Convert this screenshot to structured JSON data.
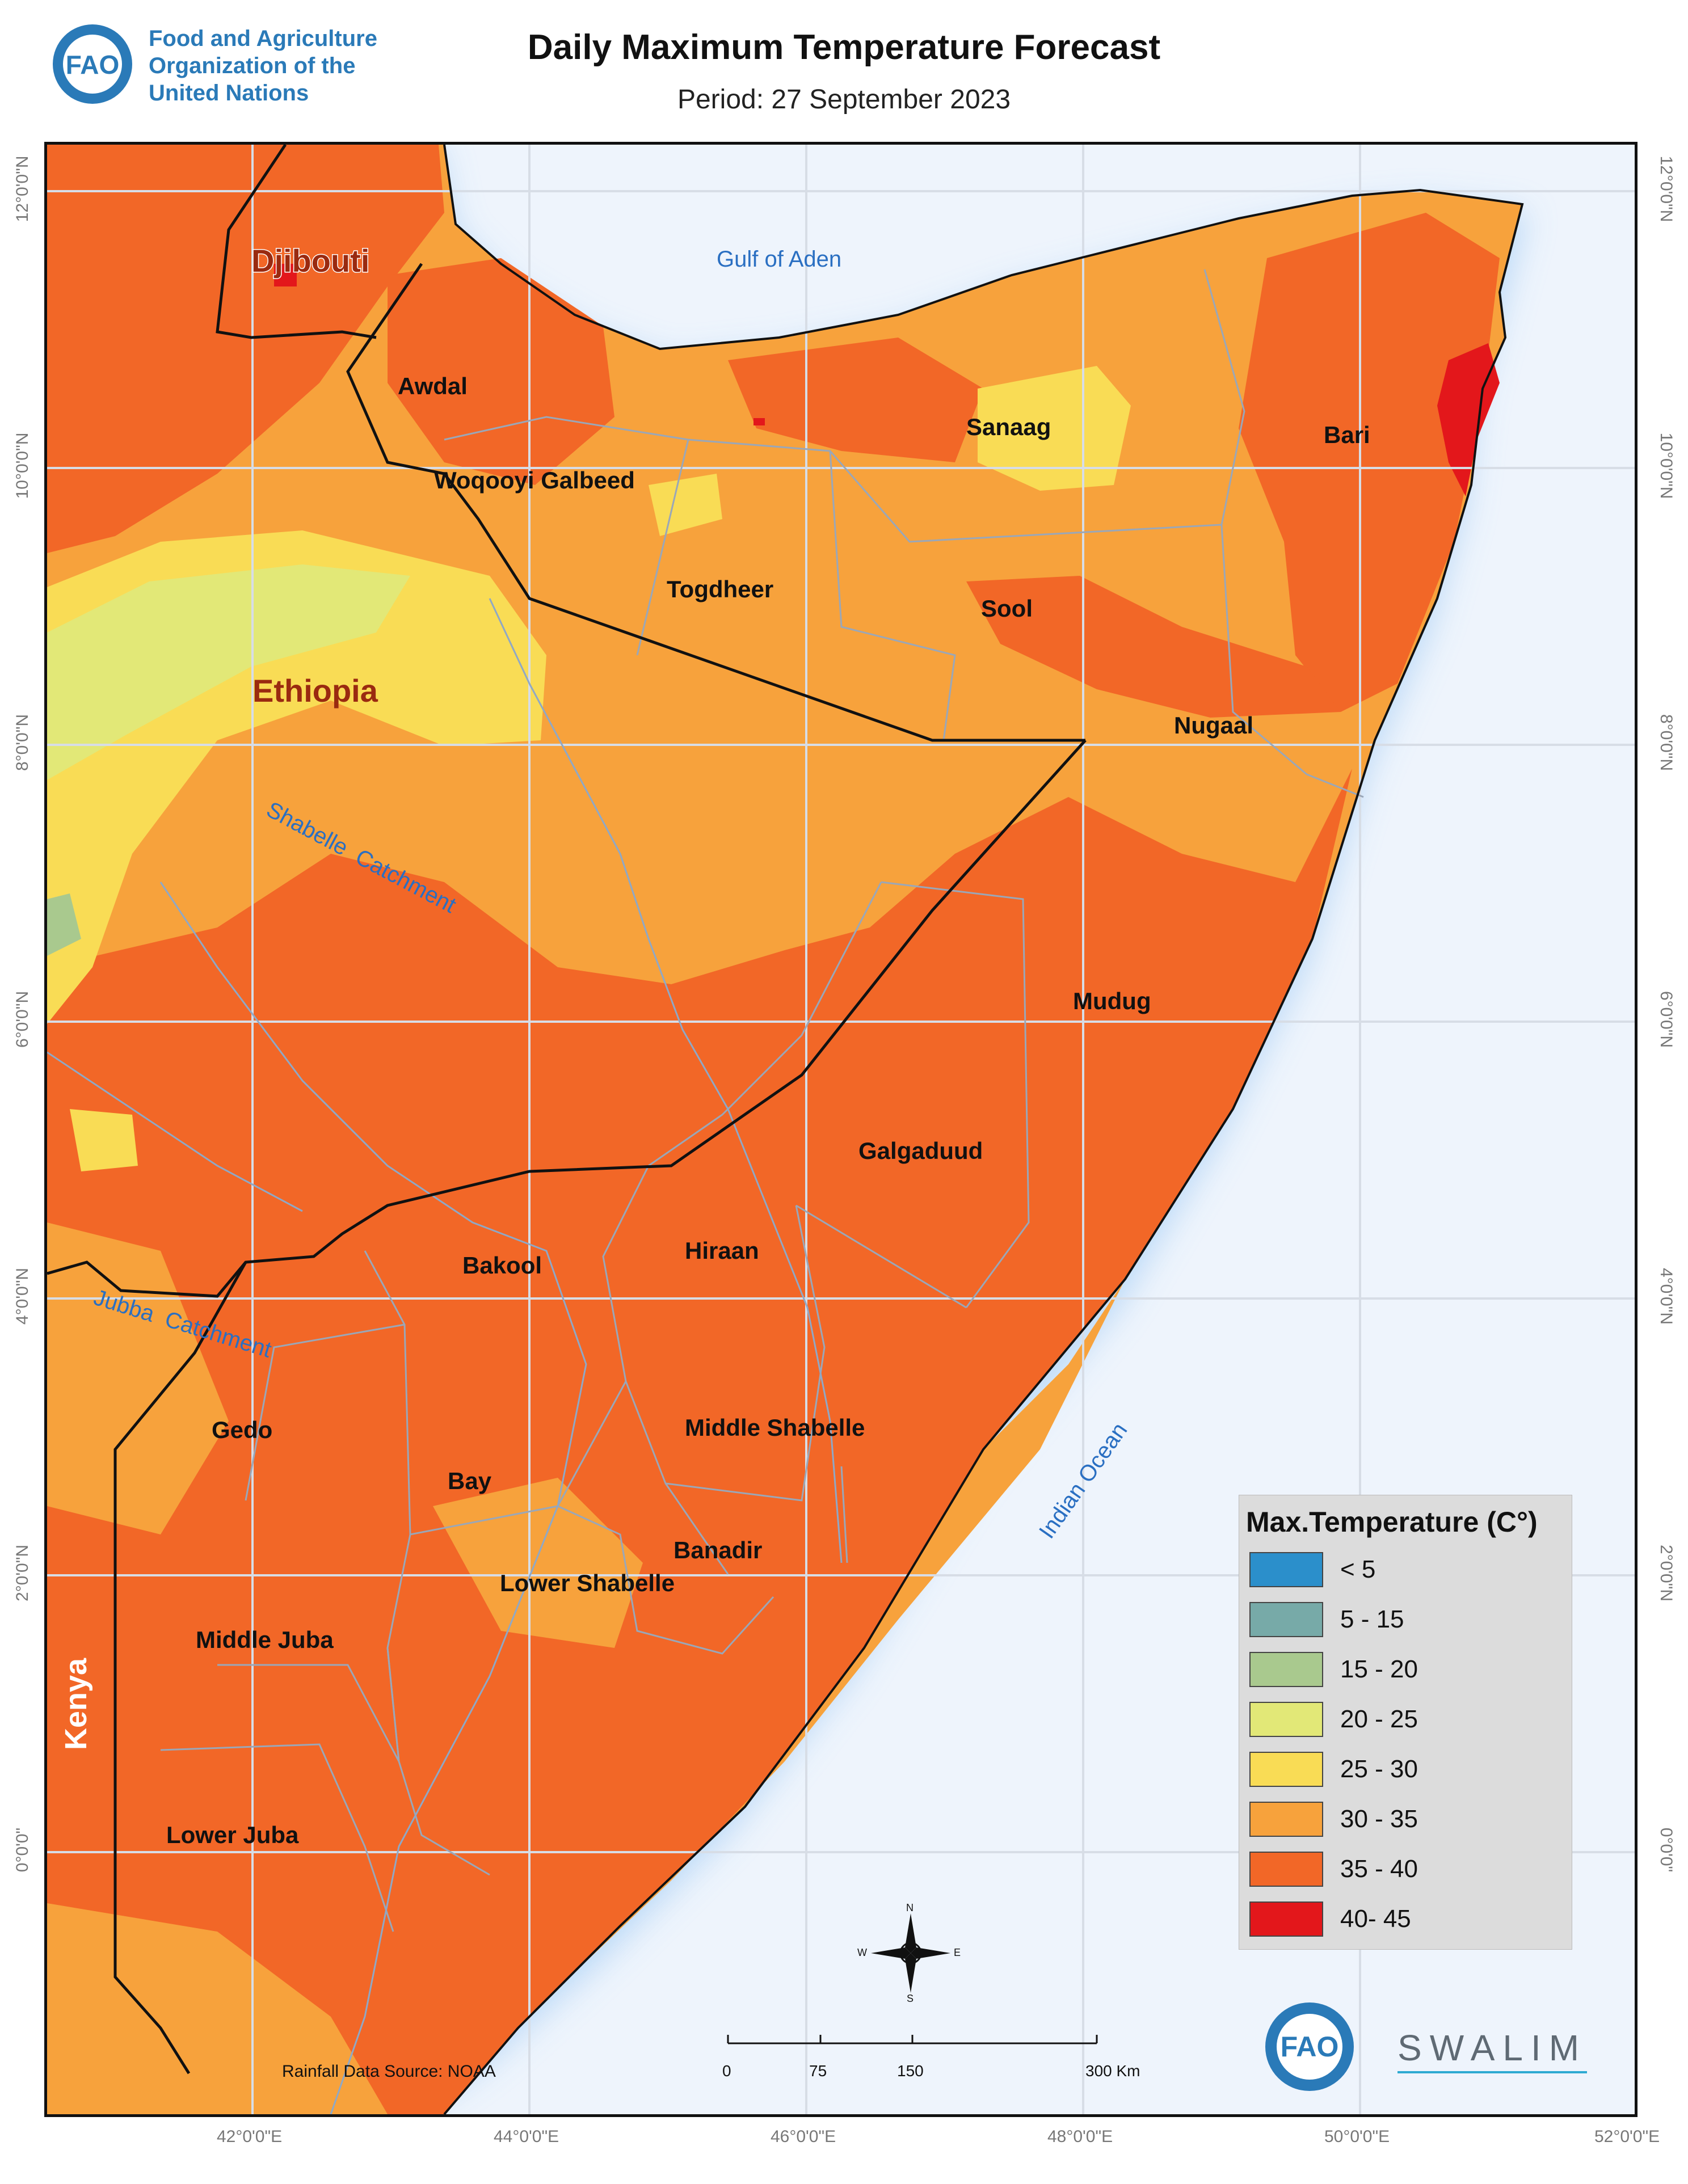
{
  "header": {
    "org_line1": "Food and Agriculture",
    "org_line2": "Organization of the",
    "org_line3": "United Nations",
    "title": "Daily Maximum Temperature Forecast",
    "period": "Period: 27 September 2023"
  },
  "axes": {
    "longitudes": [
      "42°0'0\"E",
      "44°0'0\"E",
      "46°0'0\"E",
      "48°0'0\"E",
      "50°0'0\"E",
      "52°0'0\"E"
    ],
    "latitudes": [
      "12°0'0\"N",
      "10°0'0\"N",
      "8°0'0\"N",
      "6°0'0\"N",
      "4°0'0\"N",
      "2°0'0\"N",
      "0°0'0\""
    ]
  },
  "countries": {
    "djibouti": "Djibouti",
    "ethiopia": "Ethiopia",
    "kenya": "Kenya"
  },
  "water": {
    "gulf": "Gulf of Aden",
    "ocean": "Indian Ocean",
    "shabelle": "Shabelle  Catchment",
    "jubba": "Jubba  Catchment"
  },
  "regions": {
    "awdal": "Awdal",
    "woqooyi": "Woqooyi Galbeed",
    "togdheer": "Togdheer",
    "sanaag": "Sanaag",
    "bari": "Bari",
    "sool": "Sool",
    "nugaal": "Nugaal",
    "mudug": "Mudug",
    "galgaduud": "Galgaduud",
    "hiraan": "Hiraan",
    "bakool": "Bakool",
    "gedo": "Gedo",
    "bay": "Bay",
    "middle_shabelle": "Middle Shabelle",
    "banadir": "Banadir",
    "lower_shabelle": "Lower Shabelle",
    "middle_juba": "Middle Juba",
    "lower_juba": "Lower Juba"
  },
  "legend": {
    "title": "Max.Temperature (C°)",
    "items": [
      {
        "label": "< 5",
        "color": "#2b8fcb"
      },
      {
        "label": "5 - 15",
        "color": "#77aaa8"
      },
      {
        "label": "15 - 20",
        "color": "#a9c98e"
      },
      {
        "label": "20 - 25",
        "color": "#e2e877"
      },
      {
        "label": "25 - 30",
        "color": "#f9dc55"
      },
      {
        "label": "30 - 35",
        "color": "#f7a23c"
      },
      {
        "label": "35 - 40",
        "color": "#f26727"
      },
      {
        "label": "40- 45",
        "color": "#e3171b"
      }
    ]
  },
  "compass": {
    "n": "N",
    "s": "S",
    "e": "E",
    "w": "W"
  },
  "scale": {
    "labels": [
      "0",
      "75",
      "150",
      "300 Km"
    ]
  },
  "source_note": "Rainfall Data Source: NOAA",
  "swalim": "SWALIM",
  "colors": {
    "sea": "#eef4fc",
    "coast_glow": "#b8d8f7",
    "t30_35": "#f7a23c",
    "t35_40": "#f26727",
    "t25_30": "#f9dc55",
    "t20_25": "#e2e877",
    "t15_20": "#a9c98e",
    "t40_45": "#e3171b"
  }
}
